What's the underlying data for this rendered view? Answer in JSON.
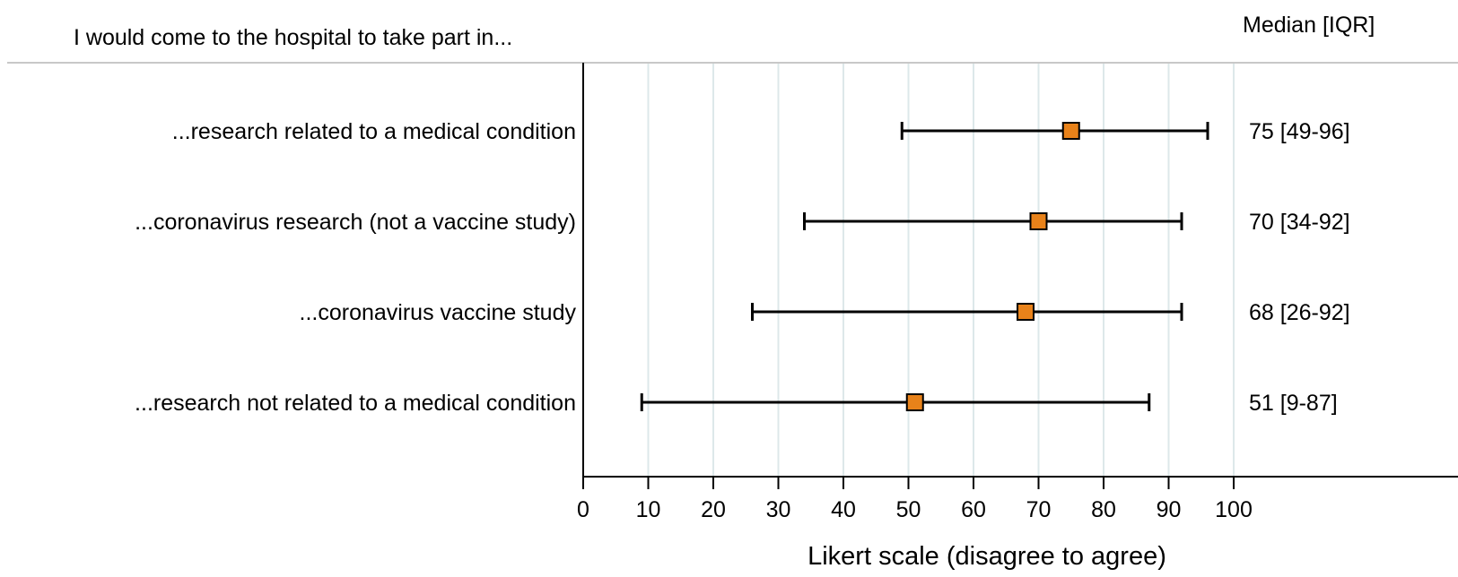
{
  "chart_data": {
    "type": "forest",
    "header_left": "I would come to the hospital to take part in...",
    "header_right": "Median [IQR]",
    "xlabel": "Likert scale (disagree to agree)",
    "xlim": [
      0,
      100
    ],
    "xticks": [
      0,
      10,
      20,
      30,
      40,
      50,
      60,
      70,
      80,
      90,
      100
    ],
    "xtick_labels": [
      "0",
      "10",
      "20",
      "30",
      "40",
      "50",
      "60",
      "70",
      "80",
      "90",
      "100"
    ],
    "grid": true,
    "marker_color": "#e8821a",
    "grid_color": "#dde8ea",
    "rows": [
      {
        "label": "...research related to a medical condition",
        "median": 75,
        "q1": 49,
        "q3": 96,
        "summary": "75 [49-96]"
      },
      {
        "label": "...coronavirus research (not a vaccine study)",
        "median": 70,
        "q1": 34,
        "q3": 92,
        "summary": "70 [34-92]"
      },
      {
        "label": "...coronavirus vaccine study",
        "median": 68,
        "q1": 26,
        "q3": 92,
        "summary": "68 [26-92]"
      },
      {
        "label": "...research not related to a medical condition",
        "median": 51,
        "q1": 9,
        "q3": 87,
        "summary": "51 [9-87]"
      }
    ]
  }
}
